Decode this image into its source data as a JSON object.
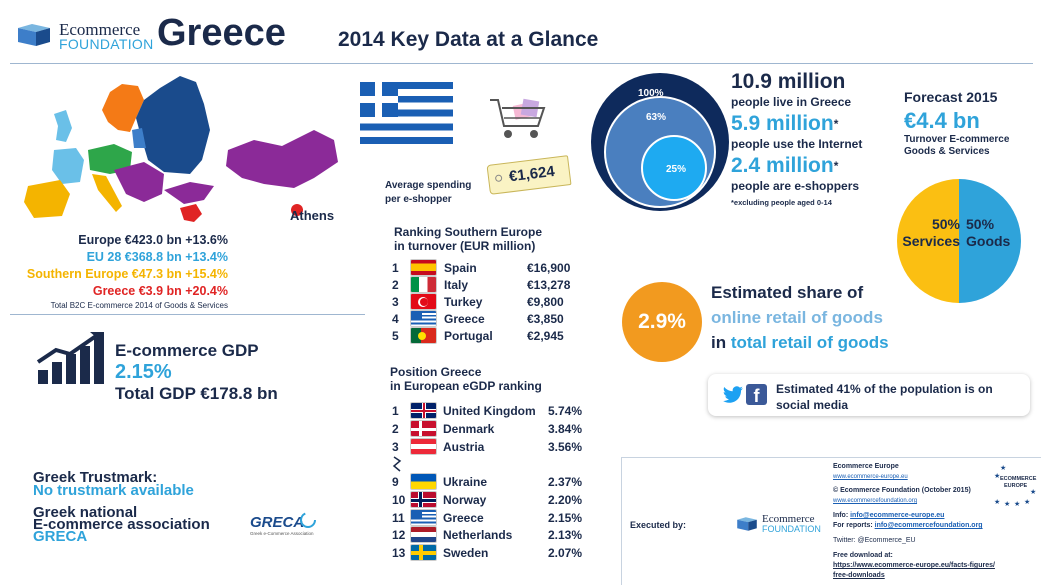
{
  "header": {
    "logo_line1": "Ecommerce",
    "logo_line2": "FOUNDATION",
    "country": "Greece",
    "subtitle": "2014 Key Data at a Glance"
  },
  "map": {
    "city_label": "Athens",
    "colors": {
      "europe": "#1a4b8c",
      "eu28": "#3d7ec9",
      "southern": "#f4b400",
      "greece": "#e02424",
      "east": "#8b2a98",
      "north": "#f47a16",
      "west": "#6ac0e8",
      "central": "#2ea64a"
    }
  },
  "europe_stats": [
    {
      "text": "Europe €423.0 bn +13.6%",
      "color": "#1b2a4a"
    },
    {
      "text": "EU 28 €368.8 bn +13.4%",
      "color": "#2fa3da"
    },
    {
      "text": "Southern Europe €47.3 bn +15.4%",
      "color": "#f4b400"
    },
    {
      "text": "Greece €3.9 bn +20.4%",
      "color": "#e02424"
    }
  ],
  "europe_note": "Total B2C E-commerce 2014 of Goods & Services",
  "gdp": {
    "title": "E-commerce GDP",
    "value": "2.15%",
    "total": "Total GDP €178.8 bn"
  },
  "trustmark": {
    "title": "Greek Trustmark:",
    "value": "No trustmark available"
  },
  "association": {
    "title_line1": "Greek national",
    "title_line2": "E-commerce association",
    "value": "GRECA",
    "logo_text": "GRECA",
    "logo_sub": "Greek e-Commerce Association"
  },
  "spending": {
    "label_line1": "Average spending",
    "label_line2": "per e-shopper",
    "value": "€1,624"
  },
  "ranking_south": {
    "title_line1": "Ranking Southern Europe",
    "title_line2": "in turnover (EUR million)",
    "rows": [
      {
        "rank": "1",
        "country": "Spain",
        "value": "€16,900"
      },
      {
        "rank": "2",
        "country": "Italy",
        "value": "€13,278"
      },
      {
        "rank": "3",
        "country": "Turkey",
        "value": "€9,800"
      },
      {
        "rank": "4",
        "country": "Greece",
        "value": "€3,850"
      },
      {
        "rank": "5",
        "country": "Portugal",
        "value": "€2,945"
      }
    ]
  },
  "ranking_egdp": {
    "title_line1": "Position Greece",
    "title_line2": "in European eGDP ranking",
    "rows": [
      {
        "rank": "1",
        "country": "United Kingdom",
        "value": "5.74%"
      },
      {
        "rank": "2",
        "country": "Denmark",
        "value": "3.84%"
      },
      {
        "rank": "3",
        "country": "Austria",
        "value": "3.56%"
      },
      {
        "rank": "9",
        "country": "Ukraine",
        "value": "2.37%"
      },
      {
        "rank": "10",
        "country": "Norway",
        "value": "2.20%"
      },
      {
        "rank": "11",
        "country": "Greece",
        "value": "2.15%"
      },
      {
        "rank": "12",
        "country": "Netherlands",
        "value": "2.13%"
      },
      {
        "rank": "13",
        "country": "Sweden",
        "value": "2.07%"
      }
    ]
  },
  "population": {
    "circles": [
      "100%",
      "63%",
      "25%"
    ],
    "stats": [
      {
        "value": "10.9 million",
        "star": "",
        "label": "people live in Greece"
      },
      {
        "value": "5.9 million",
        "star": "*",
        "label": "people use the Internet"
      },
      {
        "value": "2.4 million",
        "star": "*",
        "label": "people are e-shoppers"
      }
    ],
    "footnote": "*excluding people aged 0-14"
  },
  "forecast": {
    "title": "Forecast 2015",
    "value": "€4.4 bn",
    "label_line1": "Turnover E-commerce",
    "label_line2": "Goods & Services",
    "pie": {
      "services_pct": 50,
      "goods_pct": 50,
      "services_text": "50%",
      "services_label": "Services",
      "goods_text": "50%",
      "goods_label": "Goods",
      "services_color": "#fbbf12",
      "goods_color": "#2fa3da"
    }
  },
  "share": {
    "value": "2.9%",
    "line1": "Estimated share of",
    "line2": "online retail of goods",
    "line3_a": "in ",
    "line3_b": "total retail of goods"
  },
  "social": {
    "line1": "Estimated 41% of the population is on",
    "line2": "social media"
  },
  "footer": {
    "executed_by": "Executed by:",
    "logo_line1": "Ecommerce",
    "logo_line2": "FOUNDATION",
    "ee_title": "Ecommerce Europe",
    "ee_url": "www.ecommerce-europe.eu",
    "copyright": "© Ecommerce Foundation (October 2015)",
    "ef_url": "www.ecommercefoundation.org",
    "info_label": "Info: ",
    "info_email": "info@ecommerce-europe.eu",
    "reports_label": "For reports: ",
    "reports_email": "info@ecommercefoundation.org",
    "twitter": "Twitter: @Ecommerce_EU",
    "download_label": "Free download at:",
    "download_url1": "https://www.ecommerce-europe.eu/facts-figures/",
    "download_url2": "free-downloads",
    "ee_logo_line1": "ECOMMERCE",
    "ee_logo_line2": "EUROPE"
  }
}
